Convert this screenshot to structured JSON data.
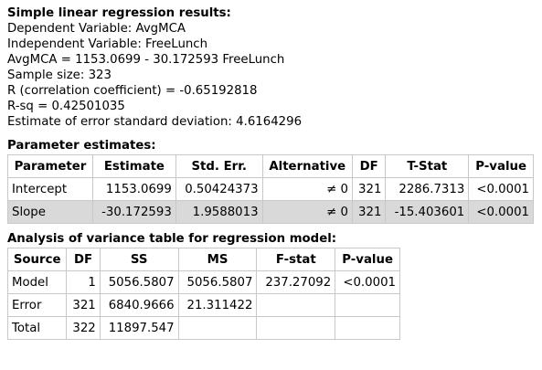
{
  "summary": {
    "heading": "Simple linear regression results:",
    "dependent": "Dependent Variable: AvgMCA",
    "independent": "Independent Variable: FreeLunch",
    "equation": "AvgMCA = 1153.0699 - 30.172593 FreeLunch",
    "sample_size": "Sample size: 323",
    "r": "R (correlation coefficient) = -0.65192818",
    "rsq": "R-sq = 0.42501035",
    "err_sd": "Estimate of error standard deviation: 4.6164296"
  },
  "params": {
    "heading": "Parameter estimates:",
    "columns": [
      "Parameter",
      "Estimate",
      "Std. Err.",
      "Alternative",
      "DF",
      "T-Stat",
      "P-value"
    ],
    "rows": [
      [
        "Intercept",
        "1153.0699",
        "0.50424373",
        "≠ 0",
        "321",
        "2286.7313",
        "<0.0001"
      ],
      [
        "Slope",
        "-30.172593",
        "1.9588013",
        "≠ 0",
        "321",
        "-15.403601",
        "<0.0001"
      ]
    ]
  },
  "anova": {
    "heading": "Analysis of variance table for regression model:",
    "columns": [
      "Source",
      "DF",
      "SS",
      "MS",
      "F-stat",
      "P-value"
    ],
    "rows": [
      [
        "Model",
        "1",
        "5056.5807",
        "5056.5807",
        "237.27092",
        "<0.0001"
      ],
      [
        "Error",
        "321",
        "6840.9666",
        "21.311422",
        "",
        ""
      ],
      [
        "Total",
        "322",
        "11897.547",
        "",
        "",
        ""
      ]
    ]
  }
}
